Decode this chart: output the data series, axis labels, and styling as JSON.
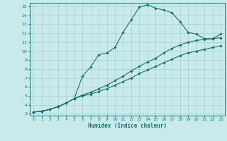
{
  "xlabel": "Humidex (Indice chaleur)",
  "bg_color": "#c8eaea",
  "grid_color": "#a8d0d0",
  "line_color": "#1a7070",
  "xlim": [
    -0.5,
    23.5
  ],
  "ylim": [
    2.8,
    15.4
  ],
  "xticks": [
    0,
    1,
    2,
    3,
    4,
    5,
    6,
    7,
    8,
    9,
    10,
    11,
    12,
    13,
    14,
    15,
    16,
    17,
    18,
    19,
    20,
    21,
    22,
    23
  ],
  "yticks": [
    3,
    4,
    5,
    6,
    7,
    8,
    9,
    10,
    11,
    12,
    13,
    14,
    15
  ],
  "line1_x": [
    0,
    1,
    2,
    3,
    4,
    5,
    6,
    7,
    8,
    9,
    10,
    11,
    12,
    13,
    14,
    15,
    16,
    17,
    18,
    19,
    20,
    21,
    22,
    23
  ],
  "line1_y": [
    3.2,
    3.3,
    3.5,
    3.8,
    4.2,
    4.7,
    7.2,
    8.2,
    9.6,
    9.8,
    10.4,
    12.1,
    13.5,
    14.9,
    15.2,
    14.8,
    14.6,
    14.3,
    13.3,
    12.1,
    11.9,
    11.4,
    11.4,
    11.9
  ],
  "line2_x": [
    0,
    1,
    2,
    3,
    4,
    5,
    6,
    7,
    8,
    9,
    10,
    11,
    12,
    13,
    14,
    15,
    16,
    17,
    18,
    19,
    20,
    21,
    22,
    23
  ],
  "line2_y": [
    3.2,
    3.3,
    3.5,
    3.8,
    4.2,
    4.7,
    5.1,
    5.4,
    5.8,
    6.2,
    6.7,
    7.2,
    7.8,
    8.3,
    8.8,
    9.2,
    9.8,
    10.3,
    10.7,
    11.0,
    11.2,
    11.3,
    11.4,
    11.5
  ],
  "line3_x": [
    0,
    1,
    2,
    3,
    4,
    5,
    6,
    7,
    8,
    9,
    10,
    11,
    12,
    13,
    14,
    15,
    16,
    17,
    18,
    19,
    20,
    21,
    22,
    23
  ],
  "line3_y": [
    3.2,
    3.3,
    3.5,
    3.8,
    4.2,
    4.7,
    5.0,
    5.2,
    5.5,
    5.8,
    6.2,
    6.6,
    7.0,
    7.5,
    7.9,
    8.3,
    8.7,
    9.1,
    9.5,
    9.8,
    10.0,
    10.2,
    10.4,
    10.6
  ]
}
